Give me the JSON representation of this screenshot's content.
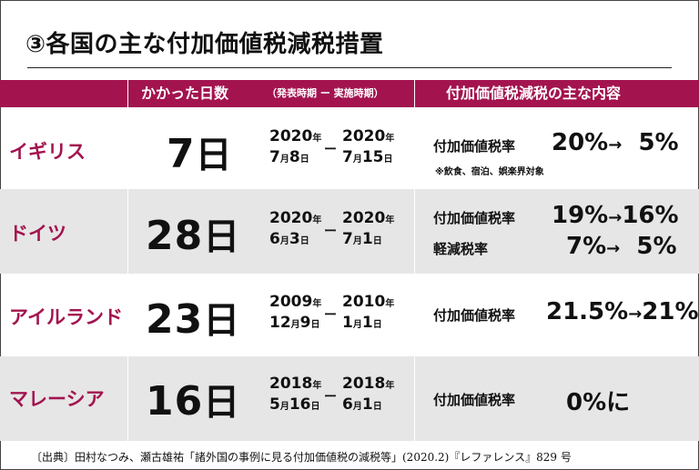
{
  "title": "③各国の主な付加価値税減税措置",
  "header": {
    "days": "かかった日数",
    "period": "（発表時期 ー 実施時期）",
    "content": "付加価値税減税の主な内容"
  },
  "rows": [
    {
      "country": "イギリス",
      "days": "7",
      "day_unit": "日",
      "announce": {
        "year": "2020",
        "month": "7",
        "day": "8"
      },
      "implement": {
        "year": "2020",
        "month": "7",
        "day": "15"
      },
      "items": [
        {
          "label": "付加価値税率",
          "from": "20%",
          "to": "5%"
        }
      ],
      "note": "※飲食、宿泊、娯楽界対象"
    },
    {
      "country": "ドイツ",
      "days": "28",
      "day_unit": "日",
      "announce": {
        "year": "2020",
        "month": "6",
        "day": "3"
      },
      "implement": {
        "year": "2020",
        "month": "7",
        "day": "1"
      },
      "items": [
        {
          "label": "付加価値税率",
          "from": "19%",
          "to": "16%"
        },
        {
          "label": "軽減税率",
          "from": "7%",
          "to": "5%"
        }
      ]
    },
    {
      "country": "アイルランド",
      "days": "23",
      "day_unit": "日",
      "announce": {
        "year": "2009",
        "month": "12",
        "day": "9"
      },
      "implement": {
        "year": "2010",
        "month": "1",
        "day": "1"
      },
      "items": [
        {
          "label": "付加価値税率",
          "from": "21.5%",
          "to": "21%"
        }
      ]
    },
    {
      "country": "マレーシア",
      "days": "16",
      "day_unit": "日",
      "announce": {
        "year": "2018",
        "month": "5",
        "day": "16"
      },
      "implement": {
        "year": "2018",
        "month": "6",
        "day": "1"
      },
      "items": [
        {
          "label": "付加価値税率",
          "value": "0%に"
        }
      ]
    }
  ],
  "units": {
    "year": "年",
    "month": "月",
    "day": "日",
    "dash": "ー",
    "arrow": "→"
  },
  "source": "〔出典〕田村なつみ、瀬古雄祐「諸外国の事例に見る付加価値税の減税等」(2020.2)『レファレンス』829 号",
  "colors": {
    "accent": "#a3144f",
    "shade": "#e6e6e6"
  }
}
